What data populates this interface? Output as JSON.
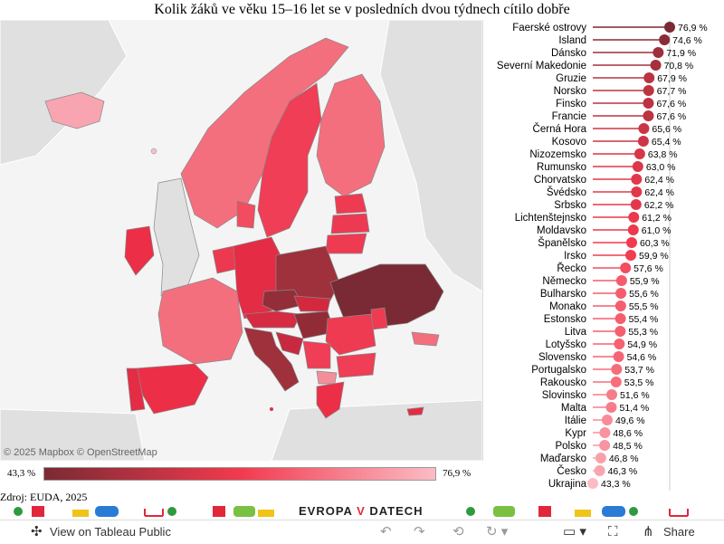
{
  "title": "Kolik žáků ve věku 15–16 let se v posledních dvou týdnech cítilo dobře",
  "map": {
    "attribution": "© 2025 Mapbox  © OpenStreetMap"
  },
  "legend": {
    "min_label": "43,3 %",
    "max_label": "76,9 %",
    "color_low": "#7a2a34",
    "color_mid": "#f23a4e",
    "color_high": "#fbbcc4"
  },
  "source": "Zdroj: EUDA, 2025",
  "brand": {
    "part1": "EVROPA ",
    "part2": "V",
    "part3": " DATECH"
  },
  "toolbar": {
    "view_label": "View on Tableau Public",
    "share_label": "Share"
  },
  "chart_data": {
    "type": "lollipop",
    "title": "Kolik žáků ve věku 15–16 let se v posledních dvou týdnech cítilo dobře",
    "xlim": [
      0,
      76.9
    ],
    "categories": [
      "Faerské ostrovy",
      "Island",
      "Dánsko",
      "Severní Makedonie",
      "Gruzie",
      "Norsko",
      "Finsko",
      "Francie",
      "Černá Hora",
      "Kosovo",
      "Nizozemsko",
      "Rumunsko",
      "Chorvatsko",
      "Švédsko",
      "Srbsko",
      "Lichtenštejnsko",
      "Moldavsko",
      "Španělsko",
      "Irsko",
      "Řecko",
      "Německo",
      "Bulharsko",
      "Monako",
      "Estonsko",
      "Litva",
      "Lotyšsko",
      "Slovensko",
      "Portugalsko",
      "Rakousko",
      "Slovinsko",
      "Malta",
      "Itálie",
      "Kypr",
      "Polsko",
      "Maďarsko",
      "Česko",
      "Ukrajina"
    ],
    "values": [
      76.9,
      74.6,
      71.9,
      70.8,
      67.9,
      67.7,
      67.6,
      67.6,
      65.6,
      65.4,
      63.8,
      63.0,
      62.4,
      62.4,
      62.2,
      61.2,
      61.0,
      60.3,
      59.9,
      57.6,
      55.9,
      55.6,
      55.5,
      55.4,
      55.3,
      54.9,
      54.6,
      53.7,
      53.5,
      51.6,
      51.4,
      49.6,
      48.6,
      48.5,
      46.8,
      46.3,
      43.3
    ],
    "value_labels": [
      "76,9 %",
      "74,6 %",
      "71,9 %",
      "70,8 %",
      "67,9 %",
      "67,7 %",
      "67,6 %",
      "67,6 %",
      "65,6 %",
      "65,4 %",
      "63,8 %",
      "63,0 %",
      "62,4 %",
      "62,4 %",
      "62,2 %",
      "61,2 %",
      "61,0 %",
      "60,3 %",
      "59,9 %",
      "57,6 %",
      "55,9 %",
      "55,6 %",
      "55,5 %",
      "55,4 %",
      "55,3 %",
      "54,9 %",
      "54,6 %",
      "53,7 %",
      "53,5 %",
      "51,6 %",
      "51,4 %",
      "49,6 %",
      "48,6 %",
      "48,5 %",
      "46,8 %",
      "46,3 %",
      "43,3 %"
    ]
  }
}
